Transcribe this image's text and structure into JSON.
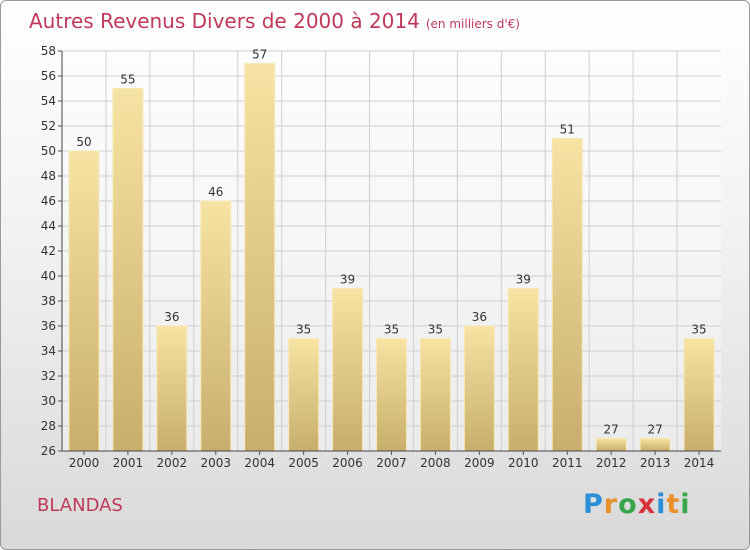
{
  "header": {
    "title": "Autres Revenus Divers de 2000 à 2014",
    "unit": "(en milliers d'€)"
  },
  "footer": {
    "commune": "BLANDAS",
    "logo_text": "Proxiti",
    "logo_letters": [
      {
        "ch": "P",
        "color": "#2a8ed8"
      },
      {
        "ch": "r",
        "color": "#e8902a"
      },
      {
        "ch": "o",
        "color": "#3aa64b"
      },
      {
        "ch": "x",
        "color": "#d8323c"
      },
      {
        "ch": "i",
        "color": "#2a8ed8"
      },
      {
        "ch": "t",
        "color": "#e8902a"
      },
      {
        "ch": "i",
        "color": "#3aa64b"
      }
    ]
  },
  "colors": {
    "title": "#c0385a",
    "bar_top": "#f7e3a3",
    "bar_bottom": "#c8ae6c",
    "grid": "#cfcfcf"
  },
  "chart_data": {
    "type": "bar",
    "title": "Autres Revenus Divers de 2000 à 2014",
    "subtitle": "(en milliers d'€)",
    "categories": [
      "2000",
      "2001",
      "2002",
      "2003",
      "2004",
      "2005",
      "2006",
      "2007",
      "2008",
      "2009",
      "2010",
      "2011",
      "2012",
      "2013",
      "2014"
    ],
    "values": [
      50,
      55,
      36,
      46,
      57,
      35,
      39,
      35,
      35,
      36,
      39,
      51,
      27,
      27,
      35
    ],
    "ylim": [
      26,
      58
    ],
    "yticks": [
      26,
      28,
      30,
      32,
      34,
      36,
      38,
      40,
      42,
      44,
      46,
      48,
      50,
      52,
      54,
      56,
      58
    ],
    "grid": true,
    "data_labels": true,
    "legend": "none"
  }
}
